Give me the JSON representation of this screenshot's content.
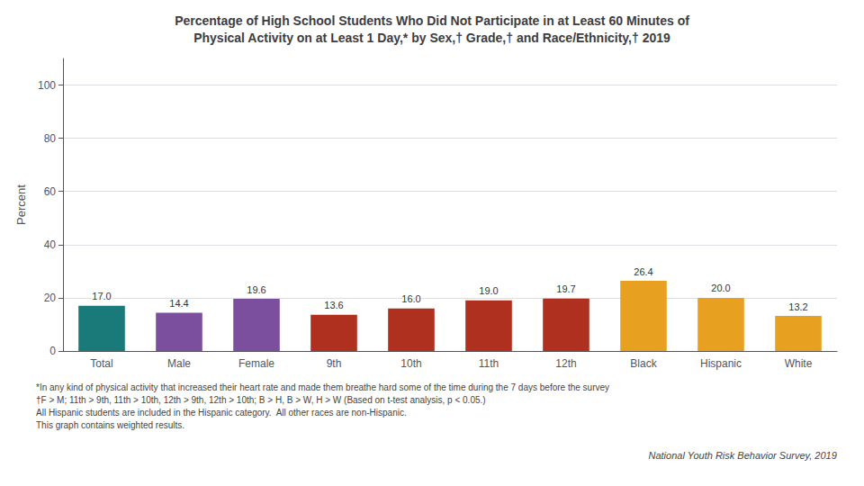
{
  "chart_data": {
    "type": "bar",
    "title": "Percentage of High School Students Who Did Not Participate in at Least 60 Minutes of\nPhysical Activity on at Least 1 Day,* by Sex,† Grade,† and Race/Ethnicity,† 2019",
    "categories": [
      "Total",
      "Male",
      "Female",
      "9th",
      "10th",
      "11th",
      "12th",
      "Black",
      "Hispanic",
      "White"
    ],
    "values": [
      17.0,
      14.4,
      19.6,
      13.6,
      16.0,
      19.0,
      19.7,
      26.4,
      20.0,
      13.2
    ],
    "value_labels": [
      "17.0",
      "14.4",
      "19.6",
      "13.6",
      "16.0",
      "19.0",
      "19.7",
      "26.4",
      "20.0",
      "13.2"
    ],
    "colors": [
      "#1a7a7a",
      "#7b4f9e",
      "#7b4f9e",
      "#b03020",
      "#b03020",
      "#b03020",
      "#b03020",
      "#e8a020",
      "#e8a020",
      "#e8a020"
    ],
    "ylabel": "Percent",
    "ylim": [
      0,
      110
    ],
    "yticks": [
      0,
      20,
      40,
      60,
      80,
      100
    ],
    "grid": true,
    "data_labels": true,
    "annotations": [
      "*In any kind of physical activity that increased their heart rate and made them breathe hard some of the time during the 7 days before the survey",
      "†F > M; 11th > 9th, 11th > 10th, 12th > 9th, 12th > 10th; B > H, B > W, H > W (Based on t-test analysis, p < 0.05.)",
      "All Hispanic students are included in the Hispanic category.  All other races are non-Hispanic.",
      "This graph contains weighted results.",
      "National Youth Risk Behavior Survey, 2019"
    ]
  }
}
